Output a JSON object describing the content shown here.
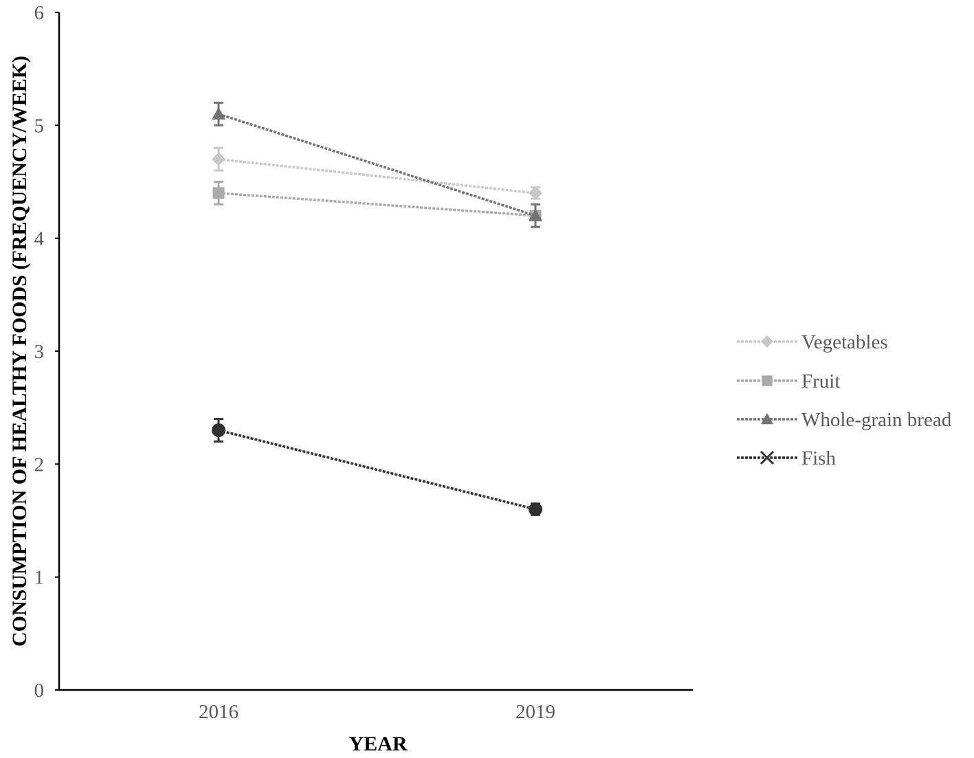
{
  "chart_data": {
    "type": "line",
    "title": "",
    "xlabel": "YEAR",
    "ylabel": "CONSUMPTION OF HEALTHY FOODS (FREQUENCY/WEEK)",
    "categories": [
      "2016",
      "2019"
    ],
    "ylim": [
      0,
      6
    ],
    "yticks": [
      "0",
      "1",
      "2",
      "3",
      "4",
      "5",
      "6"
    ],
    "grid": false,
    "legend_position": "right",
    "series": [
      {
        "name": "Vegetables",
        "values": [
          4.7,
          4.4
        ],
        "error": [
          0.1,
          0.05
        ],
        "marker": "diamond",
        "color": "#c8c8c8"
      },
      {
        "name": "Fruit",
        "values": [
          4.4,
          4.2
        ],
        "error": [
          0.1,
          0.1
        ],
        "marker": "square",
        "color": "#a9a9a9"
      },
      {
        "name": "Whole-grain bread",
        "values": [
          5.1,
          4.2
        ],
        "error": [
          0.1,
          0.1
        ],
        "marker": "triangle",
        "color": "#737373"
      },
      {
        "name": "Fish",
        "values": [
          2.3,
          1.6
        ],
        "error": [
          0.1,
          0.05
        ],
        "marker": "x",
        "color": "#303030"
      }
    ]
  }
}
